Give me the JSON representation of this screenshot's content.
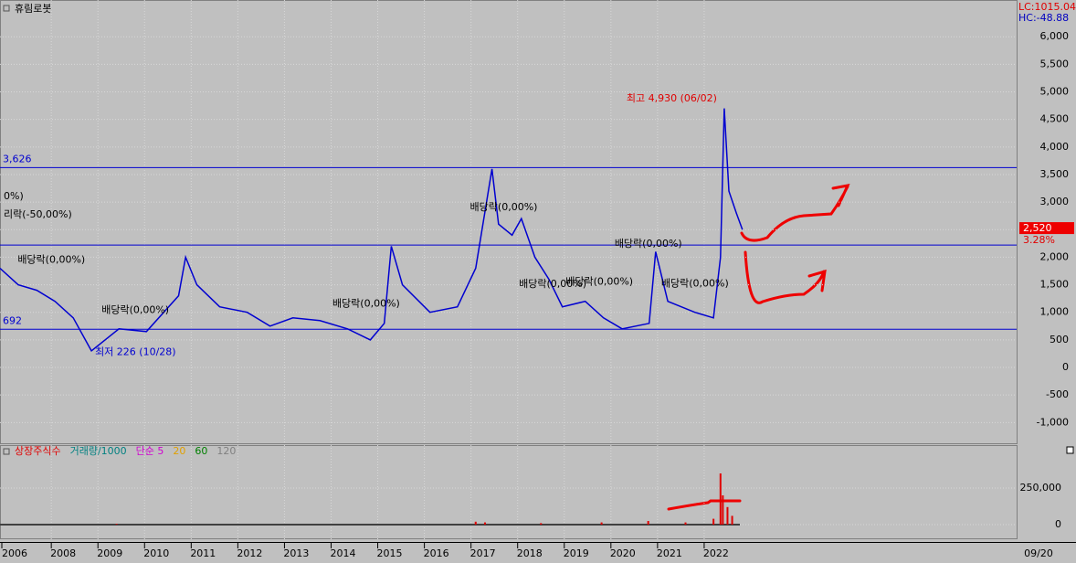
{
  "title": "휴림로봇",
  "lc": "LC:1015.04",
  "hc": "HC:-48.88",
  "chart_data": {
    "type": "line",
    "x": [
      2006.9,
      2007.29,
      2007.69,
      2008.08,
      2008.47,
      2008.86,
      2009.45,
      2010.04,
      2010.73,
      2010.88,
      2011.12,
      2011.61,
      2012.2,
      2012.69,
      2013.18,
      2013.76,
      2014.35,
      2014.84,
      2015.14,
      2015.29,
      2015.53,
      2016.12,
      2016.71,
      2017.1,
      2017.45,
      2017.59,
      2017.88,
      2018.08,
      2018.37,
      2018.67,
      2018.96,
      2019.45,
      2019.84,
      2020.24,
      2020.82,
      2020.96,
      2021.22,
      2021.8,
      2022.2,
      2022.35,
      2022.43,
      2022.53,
      2022.69,
      2022.82
    ],
    "series": [
      {
        "name": "휴림로봇",
        "color": "#0000d0",
        "values": [
          1800,
          1500,
          1400,
          1200,
          900,
          300,
          700,
          650,
          1300,
          2000,
          1500,
          1100,
          1000,
          750,
          900,
          850,
          700,
          500,
          800,
          2200,
          1500,
          1000,
          1100,
          1800,
          3600,
          2600,
          2400,
          2700,
          2000,
          1600,
          1100,
          1200,
          900,
          700,
          800,
          2100,
          1200,
          1000,
          900,
          2000,
          4700,
          3200,
          2800,
          2500
        ]
      }
    ],
    "xlim": [
      2006.9,
      2028.7
    ],
    "xticks": [
      2006,
      2008,
      2009,
      2010,
      2011,
      2012,
      2013,
      2014,
      2015,
      2016,
      2017,
      2018,
      2019,
      2020,
      2021,
      2022
    ],
    "x_end_label": "09/20",
    "ylim": [
      -1376,
      6667
    ],
    "yticks": [
      {
        "value": -1000,
        "label": "-1,000"
      },
      {
        "value": -500,
        "label": "-500"
      },
      0,
      500,
      {
        "value": 1000,
        "label": "1,000"
      },
      {
        "value": 1500,
        "label": "1,500"
      },
      {
        "value": 2000,
        "label": "2,000"
      },
      {
        "value": 2500,
        "label": "2,500"
      },
      {
        "value": 3000,
        "label": "3,000"
      },
      {
        "value": 3500,
        "label": "3,500"
      },
      {
        "value": 4000,
        "label": "4,000"
      },
      {
        "value": 4500,
        "label": "4,500"
      },
      {
        "value": 5000,
        "label": "5,000"
      },
      {
        "value": 5500,
        "label": "5,500"
      },
      {
        "value": 6000,
        "label": "6,000"
      }
    ],
    "hlines": [
      {
        "value": 3626,
        "label": "3,626"
      },
      {
        "value": 692,
        "label": "692"
      },
      {
        "value": 2220
      }
    ],
    "last_price": {
      "value": 2520,
      "label": "2,520"
    },
    "change": "3.28%",
    "annotations": [
      {
        "text": "최고 4,930 (06/02)",
        "x": 2022.43,
        "y": 4880,
        "color": "#e00000",
        "anchor": "end"
      },
      {
        "text": "최저 226 (10/28)",
        "x": 2008.86,
        "y": 270,
        "color": "#0000d0",
        "anchor": "start"
      },
      {
        "text": "0%)",
        "x": 2006.9,
        "y": 3100,
        "color": "#000000",
        "anchor": "start"
      },
      {
        "text": "리락(-50,00%)",
        "x": 2006.9,
        "y": 2770,
        "color": "#000000",
        "anchor": "start"
      },
      {
        "text": "배당락(0,00%)",
        "x": 2007.2,
        "y": 1950,
        "color": "#000000",
        "anchor": "start"
      },
      {
        "text": "배당락(0,00%)",
        "x": 2009.0,
        "y": 1040,
        "color": "#000000",
        "anchor": "start"
      },
      {
        "text": "배당락(0,00%)",
        "x": 2013.95,
        "y": 1150,
        "color": "#000000",
        "anchor": "start"
      },
      {
        "text": "배당락(0,00%)",
        "x": 2016.9,
        "y": 2900,
        "color": "#000000",
        "anchor": "start"
      },
      {
        "text": "배당락(0,00%)",
        "x": 2017.95,
        "y": 1510,
        "color": "#000000",
        "anchor": "start"
      },
      {
        "text": "배당락(0,00%)",
        "x": 2018.95,
        "y": 1550,
        "color": "#000000",
        "anchor": "start"
      },
      {
        "text": "배당락(0,00%)",
        "x": 2020.0,
        "y": 2240,
        "color": "#000000",
        "anchor": "start"
      },
      {
        "text": "배당락(0,00%)",
        "x": 2021.0,
        "y": 1520,
        "color": "#000000",
        "anchor": "start"
      }
    ]
  },
  "volume": {
    "legend": [
      {
        "name": "상장주식수",
        "color": "#e00000"
      },
      {
        "name": "거래량/1000",
        "color": "#008080"
      },
      {
        "name": "단순 5",
        "color": "#d000d0"
      },
      {
        "name": "20",
        "color": "#e0a000"
      },
      {
        "name": "60",
        "color": "#008000"
      },
      {
        "name": "120",
        "color": "#808080"
      }
    ],
    "x": [
      2009.4,
      2017.1,
      2017.3,
      2018.5,
      2019.8,
      2020.8,
      2021.6,
      2022.2,
      2022.35,
      2022.4,
      2022.5,
      2022.6
    ],
    "values": [
      5000,
      20000,
      15000,
      10000,
      15000,
      25000,
      15000,
      40000,
      350000,
      200000,
      120000,
      60000
    ],
    "ylim": [
      -100000,
      543750
    ],
    "yticks": [
      0,
      {
        "value": 250000,
        "label": "250,000"
      }
    ]
  }
}
